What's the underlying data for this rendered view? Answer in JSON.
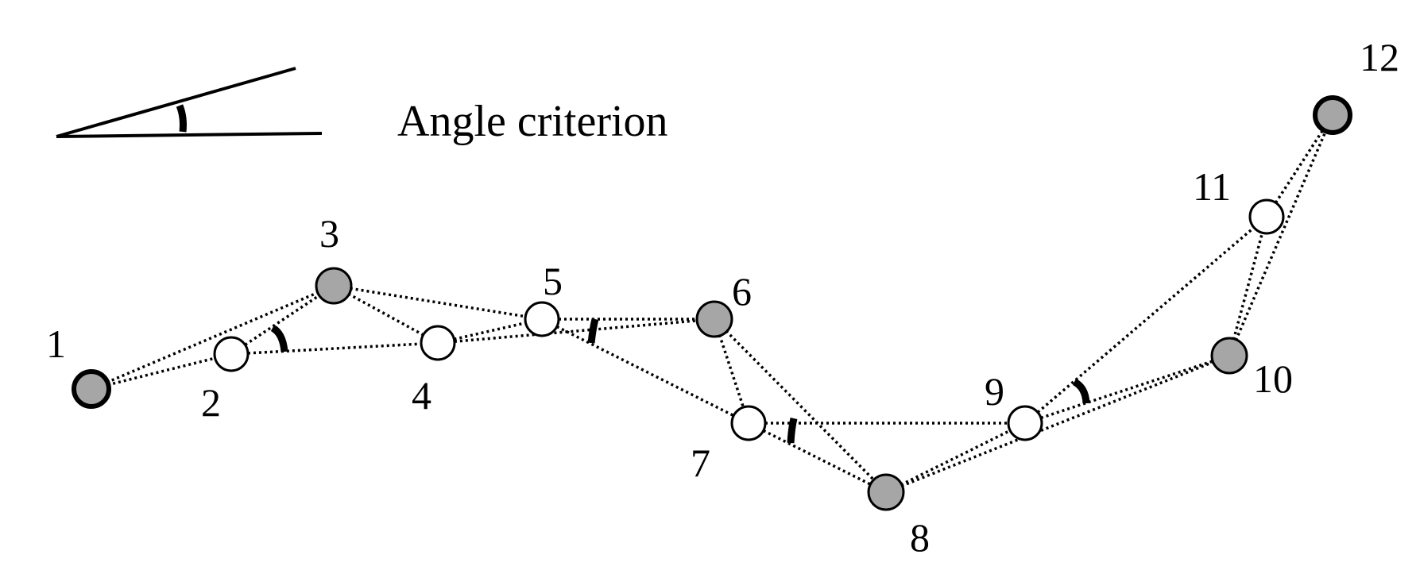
{
  "legend": {
    "title": "Angle criterion"
  },
  "nodes": [
    {
      "id": "1",
      "label": "1",
      "type": "filled"
    },
    {
      "id": "2",
      "label": "2",
      "type": "hollow"
    },
    {
      "id": "3",
      "label": "3",
      "type": "filled"
    },
    {
      "id": "4",
      "label": "4",
      "type": "hollow"
    },
    {
      "id": "5",
      "label": "5",
      "type": "hollow"
    },
    {
      "id": "6",
      "label": "6",
      "type": "filled"
    },
    {
      "id": "7",
      "label": "7",
      "type": "hollow"
    },
    {
      "id": "8",
      "label": "8",
      "type": "filled"
    },
    {
      "id": "9",
      "label": "9",
      "type": "hollow"
    },
    {
      "id": "10",
      "label": "10",
      "type": "filled"
    },
    {
      "id": "11",
      "label": "11",
      "type": "hollow"
    },
    {
      "id": "12",
      "label": "12",
      "type": "filled"
    }
  ],
  "edges": [
    {
      "from": "1",
      "to": "2"
    },
    {
      "from": "1",
      "to": "3"
    },
    {
      "from": "2",
      "to": "3"
    },
    {
      "from": "2",
      "to": "4"
    },
    {
      "from": "3",
      "to": "4"
    },
    {
      "from": "3",
      "to": "5"
    },
    {
      "from": "4",
      "to": "5"
    },
    {
      "from": "4",
      "to": "6"
    },
    {
      "from": "5",
      "to": "6"
    },
    {
      "from": "5",
      "to": "7"
    },
    {
      "from": "6",
      "to": "7"
    },
    {
      "from": "6",
      "to": "8"
    },
    {
      "from": "7",
      "to": "8"
    },
    {
      "from": "7",
      "to": "9"
    },
    {
      "from": "8",
      "to": "9"
    },
    {
      "from": "8",
      "to": "10"
    },
    {
      "from": "9",
      "to": "10"
    },
    {
      "from": "9",
      "to": "11"
    },
    {
      "from": "10",
      "to": "11"
    },
    {
      "from": "10",
      "to": "12"
    },
    {
      "from": "11",
      "to": "12"
    }
  ],
  "colors": {
    "filled_node": "#a6a6a6",
    "hollow_node": "#ffffff",
    "stroke": "#000000"
  }
}
